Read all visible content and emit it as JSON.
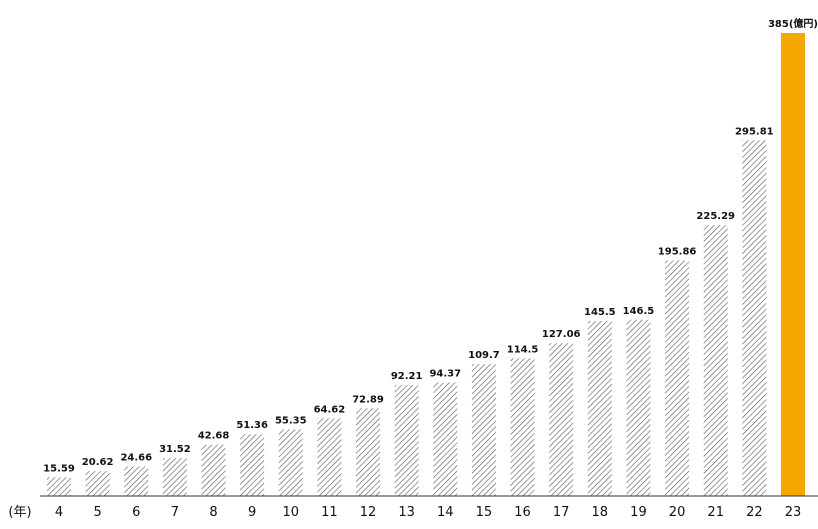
{
  "chart_data": {
    "type": "bar",
    "categories": [
      "4",
      "5",
      "6",
      "7",
      "8",
      "9",
      "10",
      "11",
      "12",
      "13",
      "14",
      "15",
      "16",
      "17",
      "18",
      "19",
      "20",
      "21",
      "22",
      "23"
    ],
    "values": [
      15.59,
      20.62,
      24.66,
      31.52,
      42.68,
      51.36,
      55.35,
      64.62,
      72.89,
      92.21,
      94.37,
      109.7,
      114.5,
      127.06,
      145.5,
      146.5,
      195.86,
      225.29,
      295.81,
      385
    ],
    "value_labels": [
      "15.59",
      "20.62",
      "24.66",
      "31.52",
      "42.68",
      "51.36",
      "55.35",
      "64.62",
      "72.89",
      "92.21",
      "94.37",
      "109.7",
      "114.5",
      "127.06",
      "145.5",
      "146.5",
      "195.86",
      "225.29",
      "295.81",
      "385(億円)"
    ],
    "x_unit_label": "(年)",
    "ylim": [
      0,
      385
    ],
    "grid": false,
    "highlight_index": 19,
    "colors": {
      "highlight": "#f5a700",
      "hatch": "#555555",
      "axis": "#333333"
    }
  }
}
